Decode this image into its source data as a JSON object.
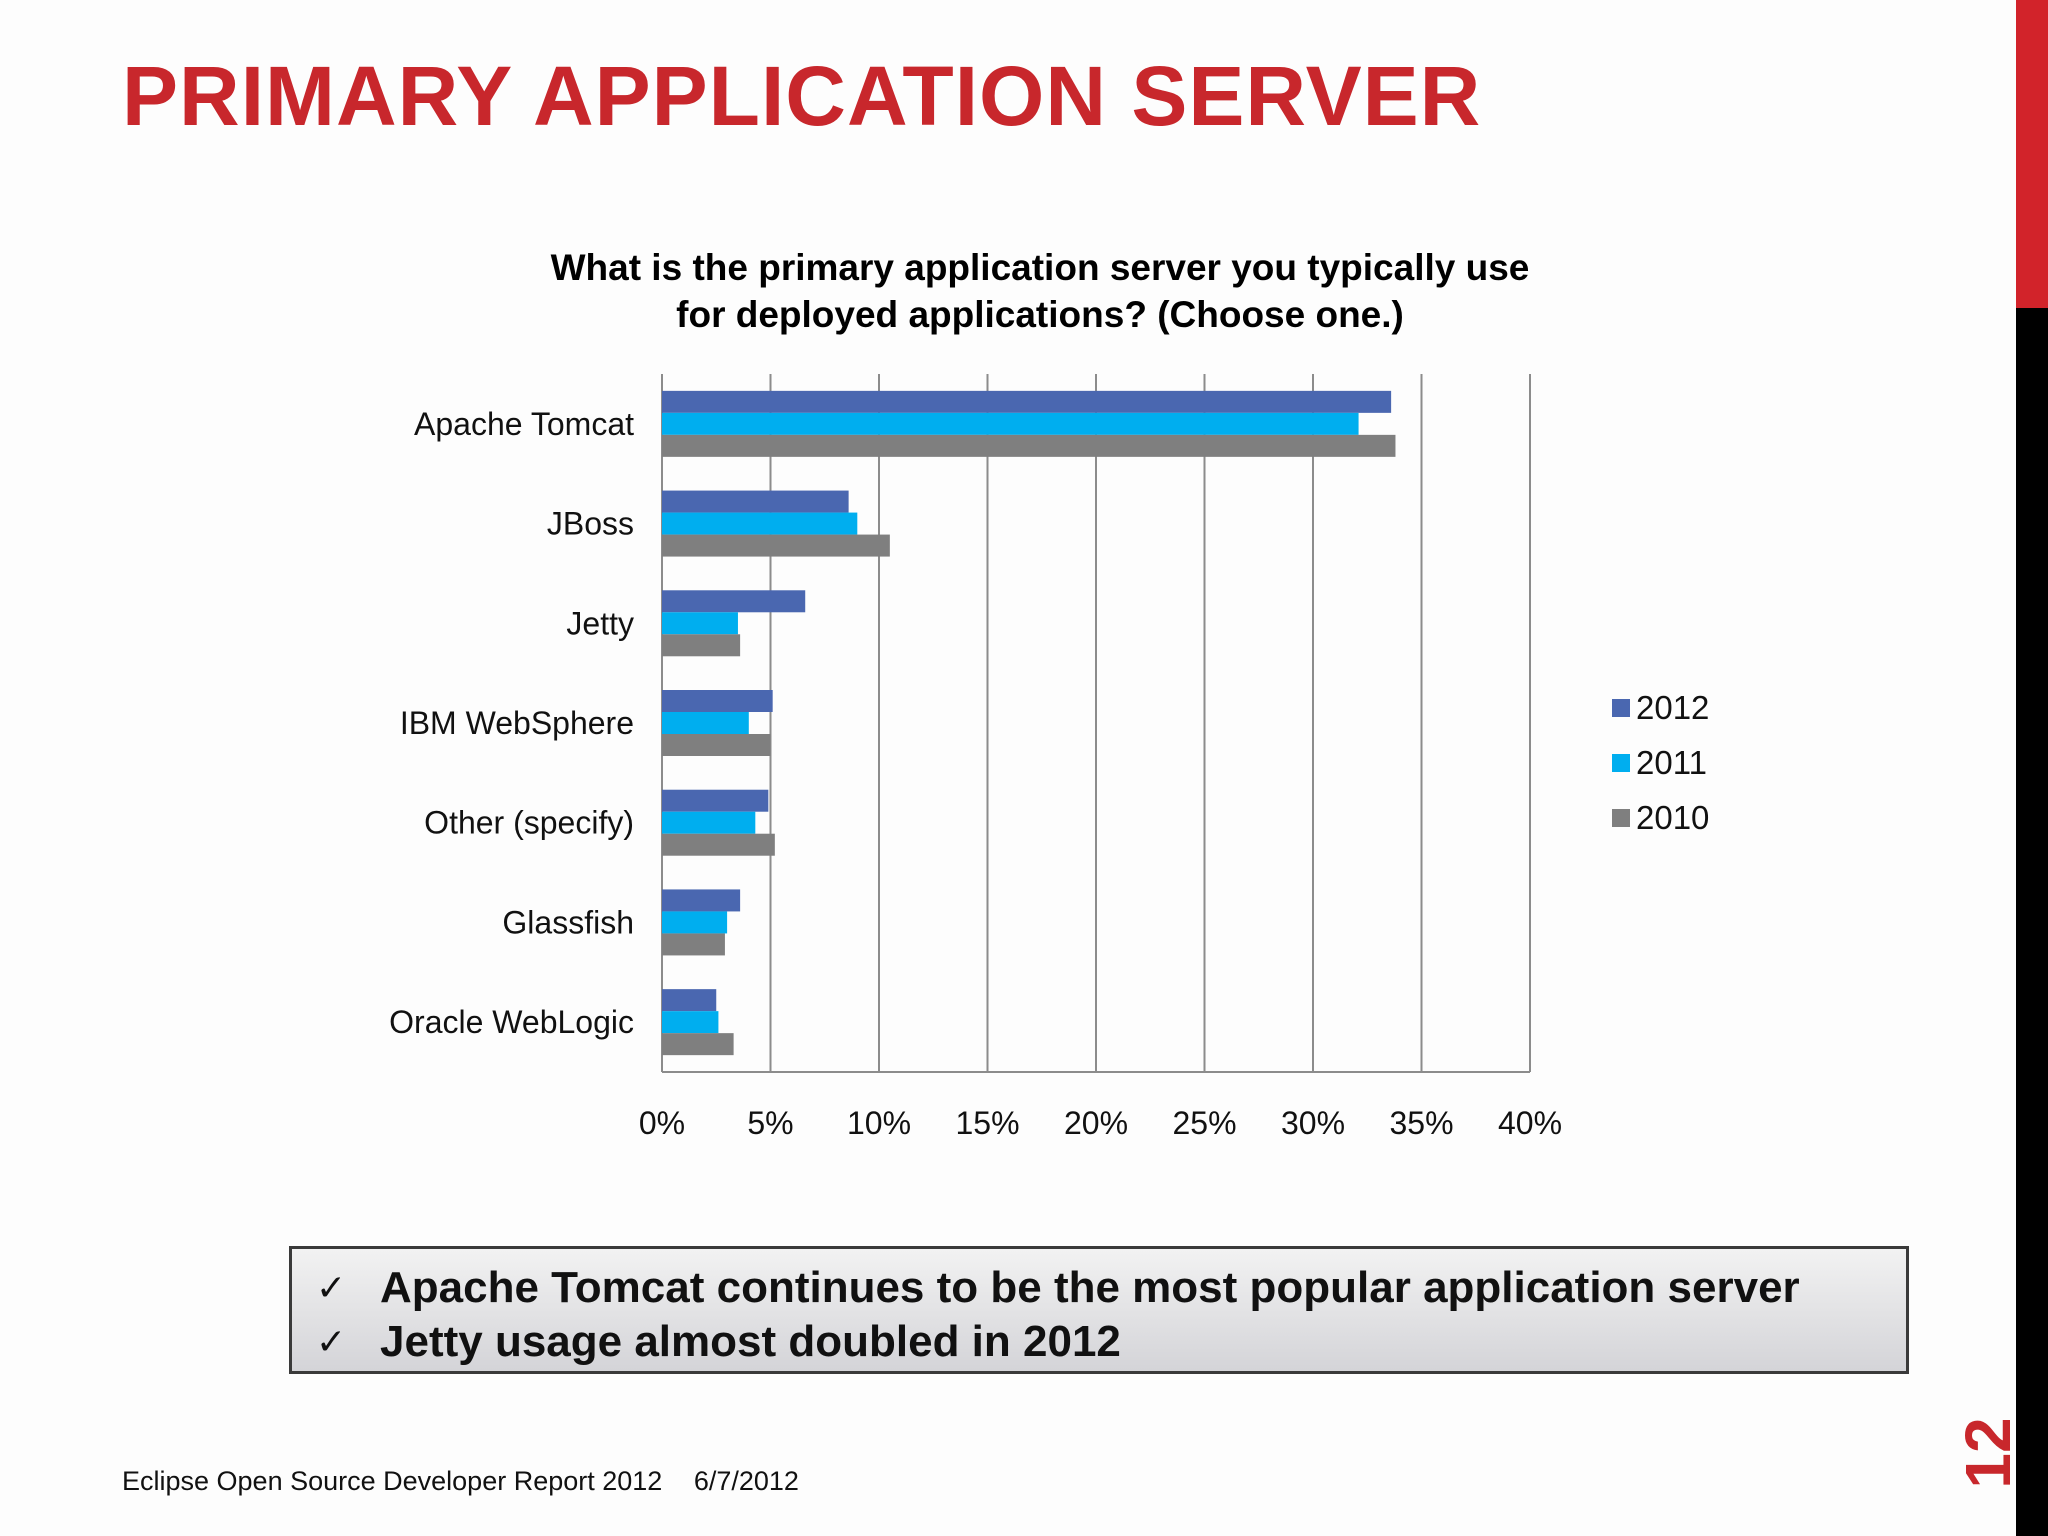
{
  "slide": {
    "title": "PRIMARY APPLICATION SERVER",
    "page_number": "12",
    "footer_report": "Eclipse Open Source Developer Report 2012",
    "footer_date": "6/7/2012",
    "accent_color": "#c8272c"
  },
  "callout": {
    "check_icon": "check-mark-icon",
    "items": [
      "Apache Tomcat continues to be the most popular application server",
      "Jetty usage almost doubled in 2012"
    ]
  },
  "chart_data": {
    "type": "bar",
    "orientation": "horizontal",
    "title": "What is the primary application server you typically use\nfor deployed applications? (Choose one.)",
    "categories": [
      "Apache Tomcat",
      "JBoss",
      "Jetty",
      "IBM WebSphere",
      "Other (specify)",
      "Glassfish",
      "Oracle WebLogic"
    ],
    "series": [
      {
        "name": "2012",
        "color": "#4a67b0",
        "values": [
          33.6,
          8.6,
          6.6,
          5.1,
          4.9,
          3.6,
          2.5
        ]
      },
      {
        "name": "2011",
        "color": "#00aeef",
        "values": [
          32.1,
          9.0,
          3.5,
          4.0,
          4.3,
          3.0,
          2.6
        ]
      },
      {
        "name": "2010",
        "color": "#7f7f7f",
        "values": [
          33.8,
          10.5,
          3.6,
          5.0,
          5.2,
          2.9,
          3.3
        ]
      }
    ],
    "xlim": [
      0,
      40
    ],
    "xticks": [
      "0%",
      "5%",
      "10%",
      "15%",
      "20%",
      "25%",
      "30%",
      "35%",
      "40%"
    ],
    "grid": true,
    "legend": "right"
  }
}
